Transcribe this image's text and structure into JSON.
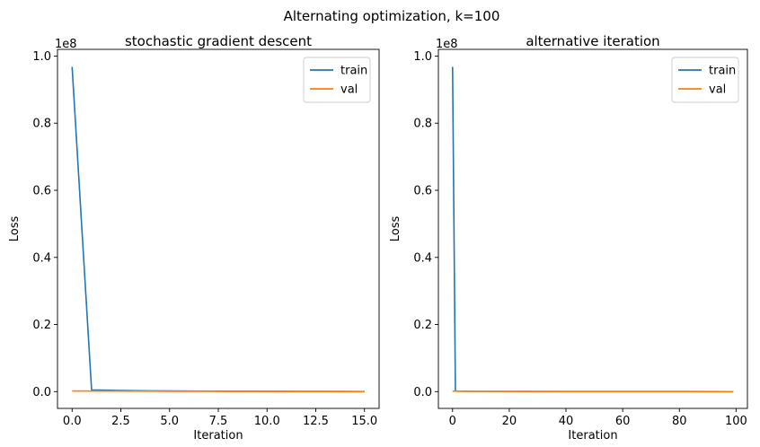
{
  "suptitle": "Alternating optimization, k=100",
  "chart_data": [
    {
      "type": "line",
      "title": "stochastic gradient descent",
      "xlabel": "Iteration",
      "ylabel": "Loss",
      "y_offset_label": "1e8",
      "xlim": [
        -0.75,
        15.75
      ],
      "ylim": [
        -0.05,
        1.02
      ],
      "xticks": [
        0,
        2.5,
        5,
        7.5,
        10,
        12.5,
        15
      ],
      "xtick_labels": [
        "0.0",
        "2.5",
        "5.0",
        "7.5",
        "10.0",
        "12.5",
        "15.0"
      ],
      "yticks": [
        0,
        0.2,
        0.4,
        0.6,
        0.8,
        1.0
      ],
      "ytick_labels": [
        "0.0",
        "0.2",
        "0.4",
        "0.6",
        "0.8",
        "1.0"
      ],
      "legend_position": "top-right",
      "series": [
        {
          "name": "train",
          "color": "#1f77b4",
          "x": [
            0,
            1,
            2,
            3,
            4,
            5,
            6,
            7,
            8,
            9,
            10,
            11,
            12,
            13,
            14,
            15
          ],
          "y": [
            0.968,
            0.005,
            0.004,
            0.003,
            0.0025,
            0.002,
            0.0018,
            0.0015,
            0.0013,
            0.0012,
            0.001,
            0.0009,
            0.0008,
            0.0007,
            0.0006,
            0.0005
          ]
        },
        {
          "name": "val",
          "color": "#ff7f0e",
          "x": [
            0,
            1,
            2,
            3,
            4,
            5,
            6,
            7,
            8,
            9,
            10,
            11,
            12,
            13,
            14,
            15
          ],
          "y": [
            0.002,
            0.0018,
            0.0016,
            0.0014,
            0.0012,
            0.001,
            0.0009,
            0.0008,
            0.0007,
            0.0006,
            0.0005,
            0.0004,
            0.0003,
            0.0002,
            0.0001,
            0.0001
          ]
        }
      ]
    },
    {
      "type": "line",
      "title": "alternative iteration",
      "xlabel": "Iteration",
      "ylabel": "Loss",
      "y_offset_label": "1e8",
      "xlim": [
        -5,
        104
      ],
      "ylim": [
        -0.05,
        1.02
      ],
      "xticks": [
        0,
        20,
        40,
        60,
        80,
        100
      ],
      "xtick_labels": [
        "0",
        "20",
        "40",
        "60",
        "80",
        "100"
      ],
      "yticks": [
        0,
        0.2,
        0.4,
        0.6,
        0.8,
        1.0
      ],
      "ytick_labels": [
        "0.0",
        "0.2",
        "0.4",
        "0.6",
        "0.8",
        "1.0"
      ],
      "legend_position": "top-right",
      "series": [
        {
          "name": "train",
          "color": "#1f77b4",
          "x": [
            0,
            1,
            2,
            5,
            10,
            20,
            40,
            60,
            80,
            99
          ],
          "y": [
            0.968,
            0.002,
            0.0015,
            0.001,
            0.0008,
            0.0006,
            0.0004,
            0.0003,
            0.0002,
            0.0001
          ]
        },
        {
          "name": "val",
          "color": "#ff7f0e",
          "x": [
            0,
            1,
            2,
            5,
            10,
            20,
            40,
            60,
            80,
            99
          ],
          "y": [
            0.0015,
            0.0012,
            0.001,
            0.0009,
            0.0008,
            0.0006,
            0.0004,
            0.0003,
            0.0002,
            0.0001
          ]
        }
      ]
    }
  ]
}
